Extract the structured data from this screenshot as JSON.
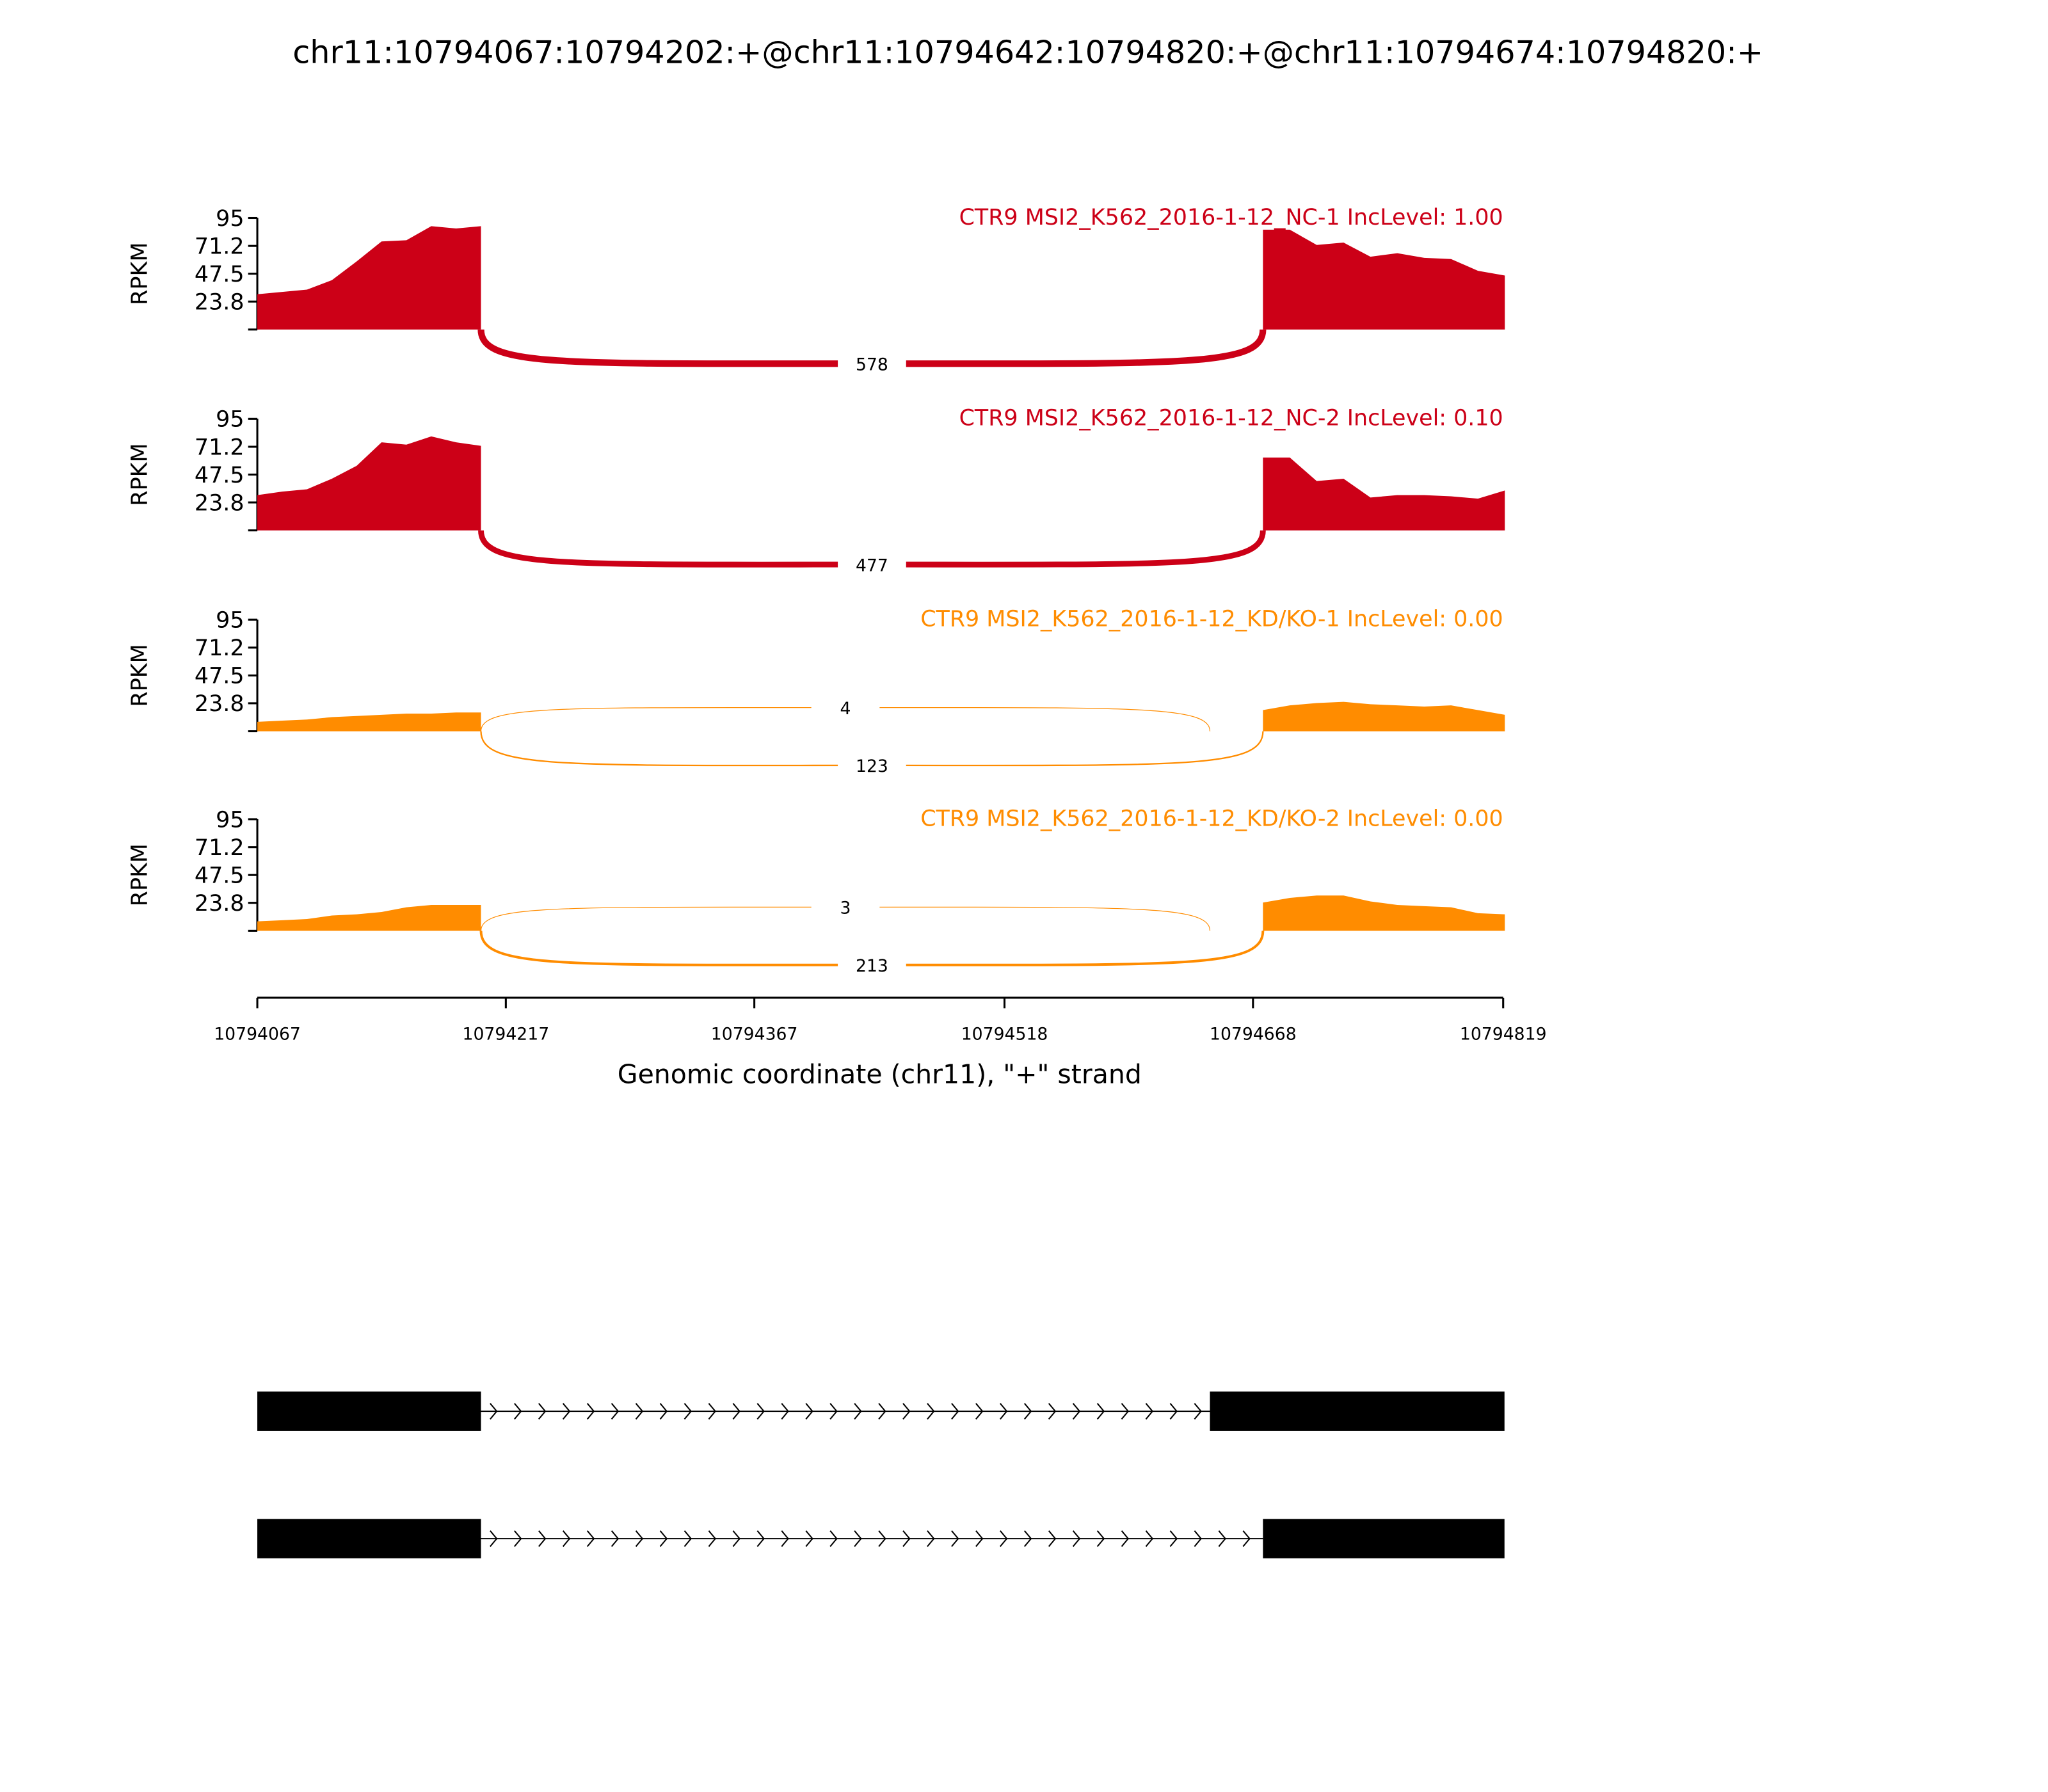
{
  "chart_data": {
    "type": "area",
    "title": "chr11:10794067:10794202:+@chr11:10794642:10794820:+@chr11:10794674:10794820:+",
    "xlabel": "Genomic coordinate (chr11), \"+\" strand",
    "ylabel": "RPKM",
    "xlim": [
      10794067,
      10794819
    ],
    "ylim": [
      0,
      95
    ],
    "x_ticks": [
      "10794067",
      "10794217",
      "10794367",
      "10794518",
      "10794668",
      "10794819"
    ],
    "y_ticks": [
      "95",
      "71.2",
      "47.5",
      "23.8"
    ],
    "colors": {
      "NC": "#cc0017",
      "KD": "#ff8c00"
    },
    "exons": {
      "exon1": [
        10794067,
        10794202
      ],
      "exon2a": [
        10794642,
        10794820
      ],
      "exon2b": [
        10794674,
        10794820
      ]
    },
    "series": [
      {
        "name": "CTR9 MSI2_K562_2016-1-12_NC-1 IncLevel: 1.00",
        "group": "NC",
        "exon1_coverage": [
          30,
          32,
          34,
          42,
          58,
          75,
          76,
          88,
          86,
          88
        ],
        "exon2_coverage": [
          85,
          85,
          72,
          74,
          62,
          65,
          61,
          60,
          50,
          46
        ],
        "junctions": [
          {
            "from": 10794202,
            "to": 10794674,
            "count": "578",
            "side": "below"
          }
        ]
      },
      {
        "name": "CTR9 MSI2_K562_2016-1-12_NC-2 IncLevel: 0.10",
        "group": "NC",
        "exon1_coverage": [
          30,
          33,
          35,
          44,
          55,
          75,
          73,
          80,
          75,
          72
        ],
        "exon2_coverage": [
          62,
          62,
          42,
          44,
          28,
          30,
          30,
          29,
          27,
          34
        ],
        "junctions": [
          {
            "from": 10794202,
            "to": 10794674,
            "count": "477",
            "side": "below"
          }
        ]
      },
      {
        "name": "CTR9 MSI2_K562_2016-1-12_KD/KO-1 IncLevel: 0.00",
        "group": "KD",
        "exon1_coverage": [
          8,
          9,
          10,
          12,
          13,
          14,
          15,
          15,
          16,
          16
        ],
        "exon2_coverage": [
          18,
          22,
          24,
          25,
          23,
          22,
          21,
          22,
          18,
          14
        ],
        "junctions": [
          {
            "from": 10794202,
            "to": 10794642,
            "count": "4",
            "side": "above"
          },
          {
            "from": 10794202,
            "to": 10794674,
            "count": "123",
            "side": "below"
          }
        ]
      },
      {
        "name": "CTR9 MSI2_K562_2016-1-12_KD/KO-2 IncLevel: 0.00",
        "group": "KD",
        "exon1_coverage": [
          8,
          9,
          10,
          13,
          14,
          16,
          20,
          22,
          22,
          22
        ],
        "exon2_coverage": [
          24,
          28,
          30,
          30,
          25,
          22,
          21,
          20,
          15,
          14
        ],
        "junctions": [
          {
            "from": 10794202,
            "to": 10794642,
            "count": "3",
            "side": "above"
          },
          {
            "from": 10794202,
            "to": 10794674,
            "count": "213",
            "side": "below"
          }
        ]
      }
    ],
    "isoforms": [
      {
        "exons": [
          [
            10794067,
            10794202
          ],
          [
            10794642,
            10794820
          ]
        ]
      },
      {
        "exons": [
          [
            10794067,
            10794202
          ],
          [
            10794674,
            10794820
          ]
        ]
      }
    ]
  }
}
